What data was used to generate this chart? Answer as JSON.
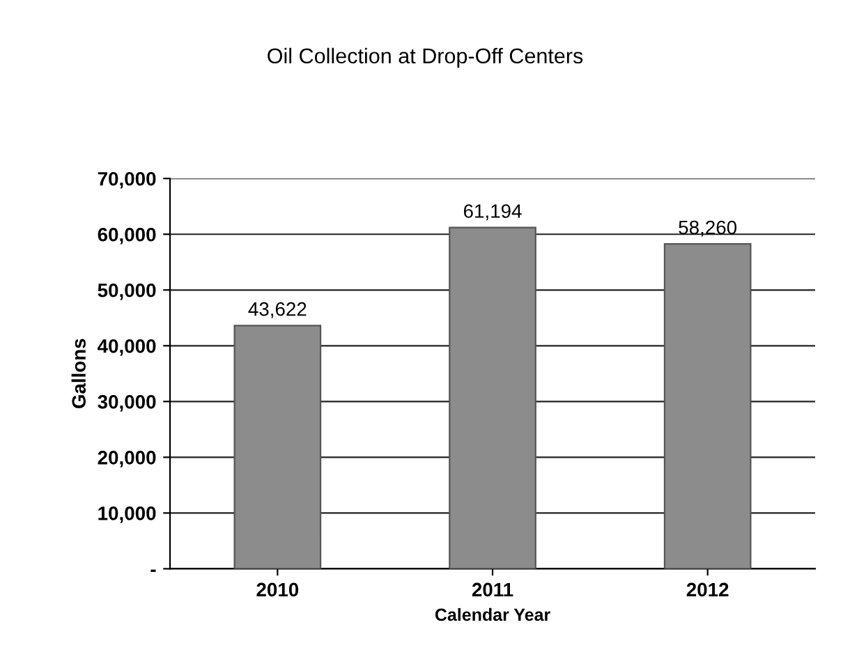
{
  "chart_data": {
    "type": "bar",
    "title": "Oil Collection at Drop-Off Centers",
    "xlabel": "Calendar Year",
    "ylabel": "Gallons",
    "categories": [
      "2010",
      "2011",
      "2012"
    ],
    "values": [
      43622,
      61194,
      58260
    ],
    "value_labels": [
      "43,622",
      "61,194",
      "58,260"
    ],
    "color": "#8c8c8c",
    "ylim": [
      0,
      70000
    ],
    "yticks": [
      {
        "value": 0,
        "label": "-"
      },
      {
        "value": 10000,
        "label": "10,000"
      },
      {
        "value": 20000,
        "label": "20,000"
      },
      {
        "value": 30000,
        "label": "30,000"
      },
      {
        "value": 40000,
        "label": "40,000"
      },
      {
        "value": 50000,
        "label": "50,000"
      },
      {
        "value": 60000,
        "label": "60,000"
      },
      {
        "value": 70000,
        "label": "70,000"
      }
    ],
    "grid": "y",
    "legend": false
  }
}
